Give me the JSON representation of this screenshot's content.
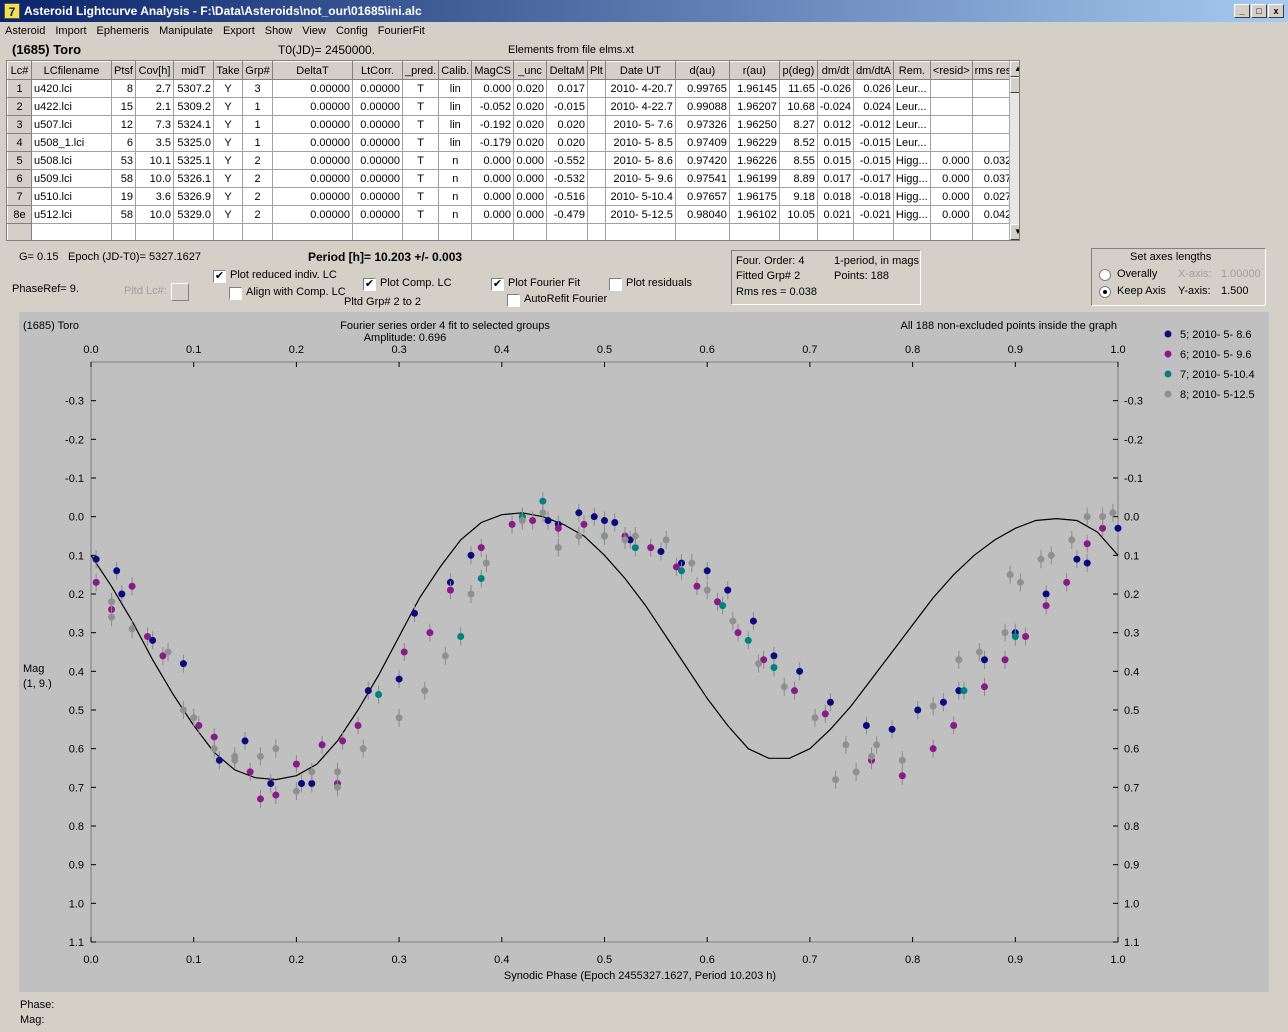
{
  "window": {
    "title": "Asteroid Lightcurve Analysis - F:\\Data\\Asteroids\\not_our\\01685\\ini.alc",
    "icon": "app-logo-icon"
  },
  "menu": [
    "Asteroid",
    "Import",
    "Ephemeris",
    "Manipulate",
    "Export",
    "Show",
    "View",
    "Config",
    "FourierFit"
  ],
  "header": {
    "object": "(1685) Toro",
    "t0": "T0(JD)= 2450000.",
    "elements": "Elements from file elms.xt"
  },
  "table": {
    "columns": [
      "Lc#",
      "LCfilename",
      "Ptsf",
      "Cov[h]",
      "midT",
      "Take",
      "Grp#",
      "DeltaT",
      "LtCorr.",
      "_pred.",
      "Calib.",
      "MagCS",
      "_unc",
      "DeltaM",
      "Plt",
      "Date UT",
      "d(au)",
      "r(au)",
      "p(deg)",
      "dm/dt",
      "dm/dtA",
      "Rem.",
      "<resid>",
      "rms res"
    ],
    "rows": [
      [
        "1",
        "u420.lci",
        "8",
        "2.7",
        "5307.2",
        "Y",
        "3",
        "0.00000",
        "0.00000",
        "T",
        "lin",
        "0.000",
        "0.020",
        "0.017",
        "",
        "2010- 4-20.7",
        "0.99765",
        "1.96145",
        "11.65",
        "-0.026",
        "0.026",
        "Leur...",
        "",
        ""
      ],
      [
        "2",
        "u422.lci",
        "15",
        "2.1",
        "5309.2",
        "Y",
        "1",
        "0.00000",
        "0.00000",
        "T",
        "lin",
        "-0.052",
        "0.020",
        "-0.015",
        "",
        "2010- 4-22.7",
        "0.99088",
        "1.96207",
        "10.68",
        "-0.024",
        "0.024",
        "Leur...",
        "",
        ""
      ],
      [
        "3",
        "u507.lci",
        "12",
        "7.3",
        "5324.1",
        "Y",
        "1",
        "0.00000",
        "0.00000",
        "T",
        "lin",
        "-0.192",
        "0.020",
        "0.020",
        "",
        "2010- 5- 7.6",
        "0.97326",
        "1.96250",
        "8.27",
        "0.012",
        "-0.012",
        "Leur...",
        "",
        ""
      ],
      [
        "4",
        "u508_1.lci",
        "6",
        "3.5",
        "5325.0",
        "Y",
        "1",
        "0.00000",
        "0.00000",
        "T",
        "lin",
        "-0.179",
        "0.020",
        "0.020",
        "",
        "2010- 5- 8.5",
        "0.97409",
        "1.96229",
        "8.52",
        "0.015",
        "-0.015",
        "Leur...",
        "",
        ""
      ],
      [
        "5",
        "u508.lci",
        "53",
        "10.1",
        "5325.1",
        "Y",
        "2",
        "0.00000",
        "0.00000",
        "T",
        "n",
        "0.000",
        "0.000",
        "-0.552",
        "",
        "2010- 5- 8.6",
        "0.97420",
        "1.96226",
        "8.55",
        "0.015",
        "-0.015",
        "Higg...",
        "0.000",
        "0.032"
      ],
      [
        "6",
        "u509.lci",
        "58",
        "10.0",
        "5326.1",
        "Y",
        "2",
        "0.00000",
        "0.00000",
        "T",
        "n",
        "0.000",
        "0.000",
        "-0.532",
        "",
        "2010- 5- 9.6",
        "0.97541",
        "1.96199",
        "8.89",
        "0.017",
        "-0.017",
        "Higg...",
        "0.000",
        "0.037"
      ],
      [
        "7",
        "u510.lci",
        "19",
        "3.6",
        "5326.9",
        "Y",
        "2",
        "0.00000",
        "0.00000",
        "T",
        "n",
        "0.000",
        "0.000",
        "-0.516",
        "",
        "2010- 5-10.4",
        "0.97657",
        "1.96175",
        "9.18",
        "0.018",
        "-0.018",
        "Higg...",
        "0.000",
        "0.027"
      ],
      [
        "8e",
        "u512.lci",
        "58",
        "10.0",
        "5329.0",
        "Y",
        "2",
        "0.00000",
        "0.00000",
        "T",
        "n",
        "0.000",
        "0.000",
        "-0.479",
        "",
        "2010- 5-12.5",
        "0.98040",
        "1.96102",
        "10.05",
        "0.021",
        "-0.021",
        "Higg...",
        "0.000",
        "0.042"
      ]
    ]
  },
  "info": {
    "g": "G= 0.15",
    "epoch": "Epoch (JD-T0)= 5327.1627",
    "period": "Period [h]= 10.203 +/- 0.003",
    "phaseref": "PhaseRef= 9.",
    "pltd_lc": "Pltd Lc#:",
    "pltd_grp": "Pltd Grp#  2  to  2"
  },
  "options": {
    "plot_reduced": "Plot reduced indiv. LC",
    "align": "Align with Comp. LC",
    "plot_comp": "Plot Comp. LC",
    "plot_fourier": "Plot Fourier Fit",
    "autorefit": "AutoRefit Fourier",
    "plot_residuals": "Plot residuals",
    "states": {
      "plot_reduced": true,
      "align": false,
      "plot_comp": true,
      "plot_fourier": true,
      "autorefit": false,
      "plot_residuals": false
    }
  },
  "fourier": {
    "order": "Four. Order:  4",
    "one_period": "1-period, in mags",
    "fitted": "Fitted Grp# 2",
    "points": "Points: 188",
    "rms": "Rms res      = 0.038"
  },
  "axes": {
    "title": "Set axes lengths",
    "overally": "Overally",
    "keep": "Keep Axis",
    "xaxis_label": "X-axis:",
    "xaxis_val": "1.00000",
    "yaxis_label": "Y-axis:",
    "yaxis_val": "1.500",
    "selected": "keep"
  },
  "chart_data": {
    "type": "scatter",
    "object": "(1685) Toro",
    "title": "Fourier series order 4 fit to selected groups",
    "subtitle": "Amplitude: 0.696",
    "note": "All 188 non-excluded points inside the graph",
    "xlabel": "Synodic Phase (Epoch 2455327.1627, Period 10.203 h)",
    "ylabel": "Mag",
    "ylabel2": "(1, 9.)",
    "xlim": [
      0.0,
      1.0
    ],
    "ylim": [
      -0.4,
      1.1
    ],
    "y_reversed": true,
    "x_ticks": [
      "0.0",
      "0.1",
      "0.2",
      "0.3",
      "0.4",
      "0.5",
      "0.6",
      "0.7",
      "0.8",
      "0.9",
      "1.0"
    ],
    "y_ticks": [
      "-0.3",
      "-0.2",
      "-0.1",
      "0.0",
      "0.1",
      "0.2",
      "0.3",
      "0.4",
      "0.5",
      "0.6",
      "0.7",
      "0.8",
      "0.9",
      "1.0",
      "1.1"
    ],
    "legend_position": "right",
    "fourier_curve": {
      "x": [
        0.0,
        0.02,
        0.04,
        0.06,
        0.08,
        0.1,
        0.12,
        0.14,
        0.16,
        0.18,
        0.2,
        0.22,
        0.24,
        0.26,
        0.28,
        0.3,
        0.32,
        0.34,
        0.36,
        0.38,
        0.4,
        0.42,
        0.44,
        0.46,
        0.48,
        0.5,
        0.52,
        0.54,
        0.56,
        0.58,
        0.6,
        0.62,
        0.64,
        0.66,
        0.68,
        0.7,
        0.72,
        0.74,
        0.76,
        0.78,
        0.8,
        0.82,
        0.84,
        0.86,
        0.88,
        0.9,
        0.92,
        0.94,
        0.96,
        0.98,
        1.0
      ],
      "y": [
        0.1,
        0.18,
        0.27,
        0.37,
        0.46,
        0.54,
        0.61,
        0.655,
        0.675,
        0.68,
        0.67,
        0.64,
        0.58,
        0.5,
        0.41,
        0.31,
        0.21,
        0.13,
        0.06,
        0.015,
        -0.005,
        -0.01,
        0.0,
        0.02,
        0.05,
        0.1,
        0.16,
        0.23,
        0.31,
        0.39,
        0.47,
        0.54,
        0.6,
        0.625,
        0.625,
        0.6,
        0.55,
        0.49,
        0.42,
        0.35,
        0.28,
        0.21,
        0.15,
        0.1,
        0.06,
        0.03,
        0.01,
        0.005,
        0.01,
        0.04,
        0.1
      ]
    },
    "series": [
      {
        "name": "5; 2010- 5- 8.6",
        "color": "#0a0a80",
        "x": [
          0.005,
          0.03,
          0.06,
          0.09,
          0.125,
          0.15,
          0.175,
          0.205,
          0.215,
          0.27,
          0.3,
          0.315,
          0.35,
          0.37,
          0.455,
          0.475,
          0.49,
          0.5,
          0.51,
          0.525,
          0.555,
          0.575,
          0.6,
          0.62,
          0.645,
          0.665,
          0.69,
          0.72,
          0.755,
          0.78,
          0.805,
          0.83,
          0.845,
          0.87,
          0.9,
          0.93,
          0.96,
          1.0,
          0.97,
          0.025,
          0.42,
          0.445
        ],
        "y": [
          0.11,
          0.2,
          0.32,
          0.38,
          0.63,
          0.58,
          0.69,
          0.69,
          0.69,
          0.45,
          0.42,
          0.25,
          0.17,
          0.1,
          0.02,
          -0.01,
          0.0,
          0.01,
          0.015,
          0.06,
          0.09,
          0.12,
          0.14,
          0.19,
          0.27,
          0.36,
          0.4,
          0.48,
          0.54,
          0.55,
          0.5,
          0.48,
          0.45,
          0.37,
          0.3,
          0.2,
          0.11,
          0.03,
          0.12,
          0.14,
          0.0,
          0.01
        ]
      },
      {
        "name": "6; 2010- 5- 9.6",
        "color": "#8a1a8a",
        "x": [
          0.005,
          0.02,
          0.055,
          0.07,
          0.105,
          0.12,
          0.155,
          0.18,
          0.2,
          0.225,
          0.245,
          0.26,
          0.305,
          0.33,
          0.35,
          0.38,
          0.41,
          0.43,
          0.455,
          0.48,
          0.52,
          0.545,
          0.57,
          0.59,
          0.61,
          0.63,
          0.655,
          0.685,
          0.715,
          0.76,
          0.79,
          0.82,
          0.84,
          0.87,
          0.89,
          0.91,
          0.93,
          0.95,
          0.97,
          0.985,
          0.04,
          0.165,
          0.24
        ],
        "y": [
          0.17,
          0.24,
          0.31,
          0.36,
          0.54,
          0.57,
          0.66,
          0.72,
          0.64,
          0.59,
          0.58,
          0.54,
          0.35,
          0.3,
          0.19,
          0.08,
          0.02,
          0.01,
          0.03,
          0.02,
          0.05,
          0.08,
          0.13,
          0.18,
          0.22,
          0.3,
          0.37,
          0.45,
          0.51,
          0.63,
          0.67,
          0.6,
          0.54,
          0.44,
          0.37,
          0.31,
          0.23,
          0.17,
          0.07,
          0.03,
          0.18,
          0.73,
          0.69
        ]
      },
      {
        "name": "7; 2010- 5-10.4",
        "color": "#008080",
        "x": [
          0.28,
          0.36,
          0.38,
          0.42,
          0.44,
          0.5,
          0.53,
          0.575,
          0.615,
          0.64,
          0.665,
          0.85,
          0.9
        ],
        "y": [
          0.46,
          0.31,
          0.16,
          0.0,
          -0.04,
          0.05,
          0.08,
          0.14,
          0.23,
          0.32,
          0.39,
          0.45,
          0.31
        ]
      },
      {
        "name": "8; 2010- 5-12.5",
        "color": "#909090",
        "x": [
          0.02,
          0.04,
          0.075,
          0.09,
          0.1,
          0.12,
          0.14,
          0.165,
          0.2,
          0.215,
          0.24,
          0.265,
          0.3,
          0.325,
          0.345,
          0.37,
          0.385,
          0.42,
          0.44,
          0.455,
          0.475,
          0.5,
          0.53,
          0.56,
          0.585,
          0.6,
          0.625,
          0.65,
          0.675,
          0.705,
          0.735,
          0.76,
          0.79,
          0.82,
          0.845,
          0.865,
          0.89,
          0.905,
          0.935,
          0.955,
          0.97,
          0.985,
          0.995,
          0.02,
          0.14,
          0.18,
          0.24,
          0.52,
          0.725,
          0.745,
          0.765,
          0.895,
          0.925
        ],
        "y": [
          0.22,
          0.29,
          0.35,
          0.5,
          0.52,
          0.6,
          0.63,
          0.62,
          0.71,
          0.66,
          0.66,
          0.6,
          0.52,
          0.45,
          0.36,
          0.2,
          0.12,
          0.01,
          -0.01,
          0.08,
          0.05,
          0.05,
          0.05,
          0.06,
          0.12,
          0.19,
          0.27,
          0.38,
          0.44,
          0.52,
          0.59,
          0.62,
          0.63,
          0.49,
          0.37,
          0.35,
          0.3,
          0.17,
          0.1,
          0.06,
          0.0,
          0.0,
          -0.01,
          0.26,
          0.62,
          0.6,
          0.7,
          0.06,
          0.68,
          0.66,
          0.59,
          0.15,
          0.11
        ]
      }
    ]
  },
  "status": {
    "phase": "Phase:",
    "mag": "Mag:"
  }
}
